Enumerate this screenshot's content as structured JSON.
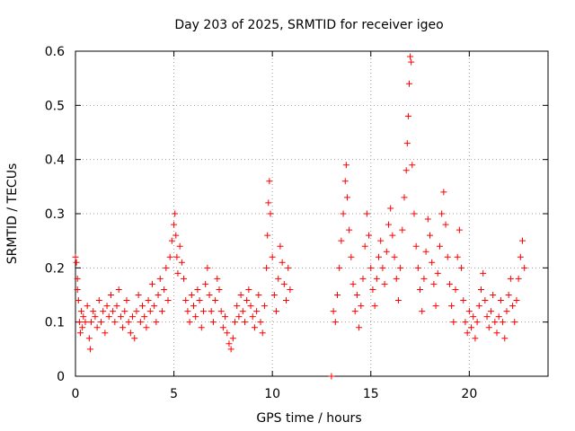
{
  "chart_data": {
    "type": "scatter",
    "title": "Day 203 of 2025, SRMTID for receiver igeo",
    "xlabel": "GPS time / hours",
    "ylabel": "SRMTID / TECUs",
    "xlim": [
      0,
      24
    ],
    "ylim": [
      0,
      0.6
    ],
    "x_ticks": [
      0,
      5,
      10,
      15,
      20
    ],
    "x_tick_labels": [
      "0",
      "5",
      "10",
      "15",
      "20"
    ],
    "y_ticks": [
      0,
      0.1,
      0.2,
      0.3,
      0.4,
      0.5,
      0.6
    ],
    "y_tick_labels": [
      "0",
      "0.1",
      "0.2",
      "0.3",
      "0.4",
      "0.5",
      "0.6"
    ],
    "grid": true,
    "marker": "plus",
    "color": "#ff0000",
    "series": [
      {
        "name": "SRMTID",
        "points": [
          [
            0.0,
            0.22
          ],
          [
            0.05,
            0.21
          ],
          [
            0.1,
            0.18
          ],
          [
            0.1,
            0.16
          ],
          [
            0.15,
            0.14
          ],
          [
            0.2,
            0.1
          ],
          [
            0.25,
            0.08
          ],
          [
            0.3,
            0.12
          ],
          [
            0.35,
            0.09
          ],
          [
            0.4,
            0.11
          ],
          [
            0.5,
            0.1
          ],
          [
            0.6,
            0.13
          ],
          [
            0.7,
            0.07
          ],
          [
            0.75,
            0.05
          ],
          [
            0.8,
            0.1
          ],
          [
            0.9,
            0.12
          ],
          [
            1.0,
            0.11
          ],
          [
            1.1,
            0.09
          ],
          [
            1.2,
            0.14
          ],
          [
            1.3,
            0.1
          ],
          [
            1.4,
            0.12
          ],
          [
            1.5,
            0.08
          ],
          [
            1.6,
            0.13
          ],
          [
            1.7,
            0.11
          ],
          [
            1.8,
            0.15
          ],
          [
            1.9,
            0.12
          ],
          [
            2.0,
            0.1
          ],
          [
            2.1,
            0.13
          ],
          [
            2.2,
            0.16
          ],
          [
            2.3,
            0.11
          ],
          [
            2.4,
            0.09
          ],
          [
            2.5,
            0.12
          ],
          [
            2.6,
            0.14
          ],
          [
            2.7,
            0.1
          ],
          [
            2.8,
            0.08
          ],
          [
            2.9,
            0.11
          ],
          [
            3.0,
            0.07
          ],
          [
            3.1,
            0.12
          ],
          [
            3.2,
            0.15
          ],
          [
            3.3,
            0.1
          ],
          [
            3.4,
            0.13
          ],
          [
            3.5,
            0.11
          ],
          [
            3.6,
            0.09
          ],
          [
            3.7,
            0.14
          ],
          [
            3.8,
            0.12
          ],
          [
            3.9,
            0.17
          ],
          [
            4.0,
            0.13
          ],
          [
            4.1,
            0.1
          ],
          [
            4.2,
            0.15
          ],
          [
            4.3,
            0.18
          ],
          [
            4.4,
            0.12
          ],
          [
            4.5,
            0.16
          ],
          [
            4.6,
            0.2
          ],
          [
            4.7,
            0.14
          ],
          [
            4.8,
            0.22
          ],
          [
            4.9,
            0.25
          ],
          [
            5.0,
            0.28
          ],
          [
            5.05,
            0.3
          ],
          [
            5.1,
            0.26
          ],
          [
            5.15,
            0.22
          ],
          [
            5.2,
            0.19
          ],
          [
            5.3,
            0.24
          ],
          [
            5.4,
            0.21
          ],
          [
            5.5,
            0.18
          ],
          [
            5.6,
            0.14
          ],
          [
            5.7,
            0.12
          ],
          [
            5.8,
            0.1
          ],
          [
            5.9,
            0.15
          ],
          [
            6.0,
            0.13
          ],
          [
            6.1,
            0.11
          ],
          [
            6.2,
            0.16
          ],
          [
            6.3,
            0.14
          ],
          [
            6.4,
            0.09
          ],
          [
            6.5,
            0.12
          ],
          [
            6.6,
            0.17
          ],
          [
            6.7,
            0.2
          ],
          [
            6.8,
            0.15
          ],
          [
            6.9,
            0.12
          ],
          [
            7.0,
            0.1
          ],
          [
            7.1,
            0.14
          ],
          [
            7.2,
            0.18
          ],
          [
            7.3,
            0.16
          ],
          [
            7.4,
            0.12
          ],
          [
            7.5,
            0.09
          ],
          [
            7.6,
            0.11
          ],
          [
            7.7,
            0.08
          ],
          [
            7.8,
            0.06
          ],
          [
            7.9,
            0.05
          ],
          [
            8.0,
            0.07
          ],
          [
            8.1,
            0.1
          ],
          [
            8.2,
            0.13
          ],
          [
            8.3,
            0.11
          ],
          [
            8.4,
            0.15
          ],
          [
            8.5,
            0.12
          ],
          [
            8.6,
            0.1
          ],
          [
            8.7,
            0.14
          ],
          [
            8.8,
            0.16
          ],
          [
            8.9,
            0.13
          ],
          [
            9.0,
            0.11
          ],
          [
            9.1,
            0.09
          ],
          [
            9.2,
            0.12
          ],
          [
            9.3,
            0.15
          ],
          [
            9.4,
            0.1
          ],
          [
            9.5,
            0.08
          ],
          [
            9.6,
            0.13
          ],
          [
            9.7,
            0.2
          ],
          [
            9.75,
            0.26
          ],
          [
            9.8,
            0.32
          ],
          [
            9.85,
            0.36
          ],
          [
            9.9,
            0.3
          ],
          [
            10.0,
            0.22
          ],
          [
            10.1,
            0.15
          ],
          [
            10.2,
            0.12
          ],
          [
            10.3,
            0.18
          ],
          [
            10.4,
            0.24
          ],
          [
            10.5,
            0.21
          ],
          [
            10.6,
            0.17
          ],
          [
            10.7,
            0.14
          ],
          [
            10.8,
            0.2
          ],
          [
            10.9,
            0.16
          ],
          [
            13.0,
            0.0
          ],
          [
            13.1,
            0.12
          ],
          [
            13.2,
            0.1
          ],
          [
            13.3,
            0.15
          ],
          [
            13.4,
            0.2
          ],
          [
            13.5,
            0.25
          ],
          [
            13.6,
            0.3
          ],
          [
            13.7,
            0.36
          ],
          [
            13.75,
            0.39
          ],
          [
            13.8,
            0.33
          ],
          [
            13.9,
            0.27
          ],
          [
            14.0,
            0.22
          ],
          [
            14.1,
            0.17
          ],
          [
            14.2,
            0.12
          ],
          [
            14.3,
            0.15
          ],
          [
            14.4,
            0.09
          ],
          [
            14.5,
            0.13
          ],
          [
            14.6,
            0.18
          ],
          [
            14.7,
            0.24
          ],
          [
            14.8,
            0.3
          ],
          [
            14.9,
            0.26
          ],
          [
            15.0,
            0.2
          ],
          [
            15.1,
            0.16
          ],
          [
            15.2,
            0.13
          ],
          [
            15.3,
            0.18
          ],
          [
            15.4,
            0.22
          ],
          [
            15.5,
            0.25
          ],
          [
            15.6,
            0.2
          ],
          [
            15.7,
            0.17
          ],
          [
            15.8,
            0.23
          ],
          [
            15.9,
            0.28
          ],
          [
            16.0,
            0.31
          ],
          [
            16.1,
            0.26
          ],
          [
            16.2,
            0.22
          ],
          [
            16.3,
            0.18
          ],
          [
            16.4,
            0.14
          ],
          [
            16.5,
            0.2
          ],
          [
            16.6,
            0.27
          ],
          [
            16.7,
            0.33
          ],
          [
            16.8,
            0.38
          ],
          [
            16.85,
            0.43
          ],
          [
            16.9,
            0.48
          ],
          [
            16.95,
            0.54
          ],
          [
            17.0,
            0.59
          ],
          [
            17.05,
            0.58
          ],
          [
            17.1,
            0.39
          ],
          [
            17.2,
            0.3
          ],
          [
            17.3,
            0.24
          ],
          [
            17.4,
            0.2
          ],
          [
            17.5,
            0.16
          ],
          [
            17.6,
            0.12
          ],
          [
            17.7,
            0.18
          ],
          [
            17.8,
            0.23
          ],
          [
            17.9,
            0.29
          ],
          [
            18.0,
            0.26
          ],
          [
            18.1,
            0.21
          ],
          [
            18.2,
            0.17
          ],
          [
            18.3,
            0.13
          ],
          [
            18.4,
            0.19
          ],
          [
            18.5,
            0.24
          ],
          [
            18.6,
            0.3
          ],
          [
            18.7,
            0.34
          ],
          [
            18.8,
            0.28
          ],
          [
            18.9,
            0.22
          ],
          [
            19.0,
            0.17
          ],
          [
            19.1,
            0.13
          ],
          [
            19.2,
            0.1
          ],
          [
            19.3,
            0.16
          ],
          [
            19.4,
            0.22
          ],
          [
            19.5,
            0.27
          ],
          [
            19.6,
            0.2
          ],
          [
            19.7,
            0.14
          ],
          [
            19.8,
            0.1
          ],
          [
            19.9,
            0.08
          ],
          [
            20.0,
            0.12
          ],
          [
            20.1,
            0.09
          ],
          [
            20.2,
            0.11
          ],
          [
            20.3,
            0.07
          ],
          [
            20.4,
            0.1
          ],
          [
            20.5,
            0.13
          ],
          [
            20.6,
            0.16
          ],
          [
            20.7,
            0.19
          ],
          [
            20.8,
            0.14
          ],
          [
            20.9,
            0.11
          ],
          [
            21.0,
            0.09
          ],
          [
            21.1,
            0.12
          ],
          [
            21.2,
            0.15
          ],
          [
            21.3,
            0.1
          ],
          [
            21.4,
            0.08
          ],
          [
            21.5,
            0.11
          ],
          [
            21.6,
            0.14
          ],
          [
            21.7,
            0.1
          ],
          [
            21.8,
            0.07
          ],
          [
            21.9,
            0.12
          ],
          [
            22.0,
            0.15
          ],
          [
            22.1,
            0.18
          ],
          [
            22.2,
            0.13
          ],
          [
            22.3,
            0.1
          ],
          [
            22.4,
            0.14
          ],
          [
            22.5,
            0.18
          ],
          [
            22.6,
            0.22
          ],
          [
            22.7,
            0.25
          ],
          [
            22.8,
            0.2
          ]
        ]
      }
    ]
  }
}
